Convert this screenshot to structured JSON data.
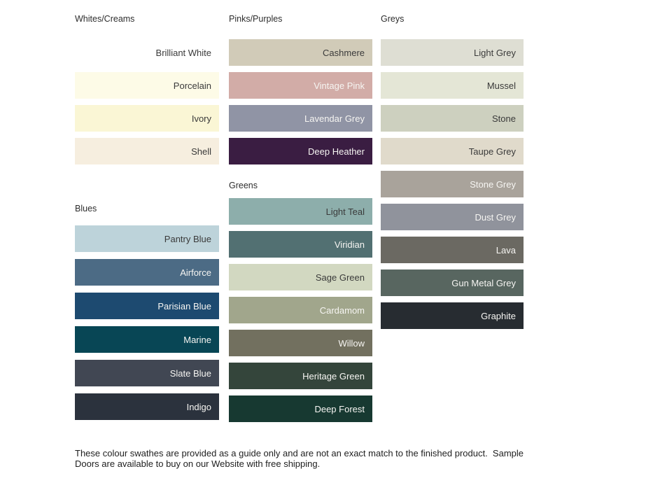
{
  "page": {
    "background": "#ffffff"
  },
  "palette": {
    "columns": [
      {
        "sections": [
          {
            "header": "Whites/Creams",
            "swatches": [
              {
                "name": "Brilliant White",
                "bg": "#ffffff",
                "fg": "dark"
              },
              {
                "name": "Porcelain",
                "bg": "#fdfbe7",
                "fg": "dark"
              },
              {
                "name": "Ivory",
                "bg": "#faf6d5",
                "fg": "dark"
              },
              {
                "name": "Shell",
                "bg": "#f6eedf",
                "fg": "dark"
              }
            ]
          },
          {
            "header": "Blues",
            "swatches": [
              {
                "name": "Pantry Blue",
                "bg": "#bdd3da",
                "fg": "dark"
              },
              {
                "name": "Airforce",
                "bg": "#4c6b85",
                "fg": "light"
              },
              {
                "name": "Parisian Blue",
                "bg": "#1d4a70",
                "fg": "light"
              },
              {
                "name": "Marine",
                "bg": "#084655",
                "fg": "light"
              },
              {
                "name": "Slate Blue",
                "bg": "#414753",
                "fg": "light"
              },
              {
                "name": "Indigo",
                "bg": "#2b323d",
                "fg": "light"
              }
            ]
          }
        ]
      },
      {
        "sections": [
          {
            "header": "Pinks/Purples",
            "swatches": [
              {
                "name": "Cashmere",
                "bg": "#d1cbb8",
                "fg": "dark"
              },
              {
                "name": "Vintage Pink",
                "bg": "#d2aca7",
                "fg": "light"
              },
              {
                "name": "Lavendar Grey",
                "bg": "#9094a5",
                "fg": "light"
              },
              {
                "name": "Deep Heather",
                "bg": "#3a1d42",
                "fg": "light"
              }
            ]
          },
          {
            "header": "Greens",
            "swatches": [
              {
                "name": "Light Teal",
                "bg": "#8daeab",
                "fg": "dark"
              },
              {
                "name": "Viridian",
                "bg": "#527072",
                "fg": "light"
              },
              {
                "name": "Sage Green",
                "bg": "#d2d8c1",
                "fg": "dark"
              },
              {
                "name": "Cardamom",
                "bg": "#a1a68c",
                "fg": "light"
              },
              {
                "name": "Willow",
                "bg": "#72705f",
                "fg": "light"
              },
              {
                "name": "Heritage Green",
                "bg": "#34453b",
                "fg": "light"
              },
              {
                "name": "Deep Forest",
                "bg": "#173931",
                "fg": "light"
              }
            ]
          }
        ]
      },
      {
        "sections": [
          {
            "header": "Greys",
            "swatches": [
              {
                "name": "Light Grey",
                "bg": "#deded3",
                "fg": "dark"
              },
              {
                "name": "Mussel",
                "bg": "#e4e6d6",
                "fg": "dark"
              },
              {
                "name": "Stone",
                "bg": "#cdd0bf",
                "fg": "dark"
              },
              {
                "name": "Taupe Grey",
                "bg": "#e0dacb",
                "fg": "dark"
              },
              {
                "name": "Stone Grey",
                "bg": "#a9a39b",
                "fg": "light"
              },
              {
                "name": "Dust Grey",
                "bg": "#90939c",
                "fg": "light"
              },
              {
                "name": "Lava",
                "bg": "#6b6962",
                "fg": "light"
              },
              {
                "name": "Gun Metal Grey",
                "bg": "#586660",
                "fg": "light"
              },
              {
                "name": "Graphite",
                "bg": "#272c31",
                "fg": "light"
              }
            ]
          }
        ]
      }
    ]
  },
  "footer": {
    "text": "These colour swathes are provided as a guide only and are not an exact match to the finished product.  Sample\nDoors are available to buy on our Website with free shipping."
  }
}
